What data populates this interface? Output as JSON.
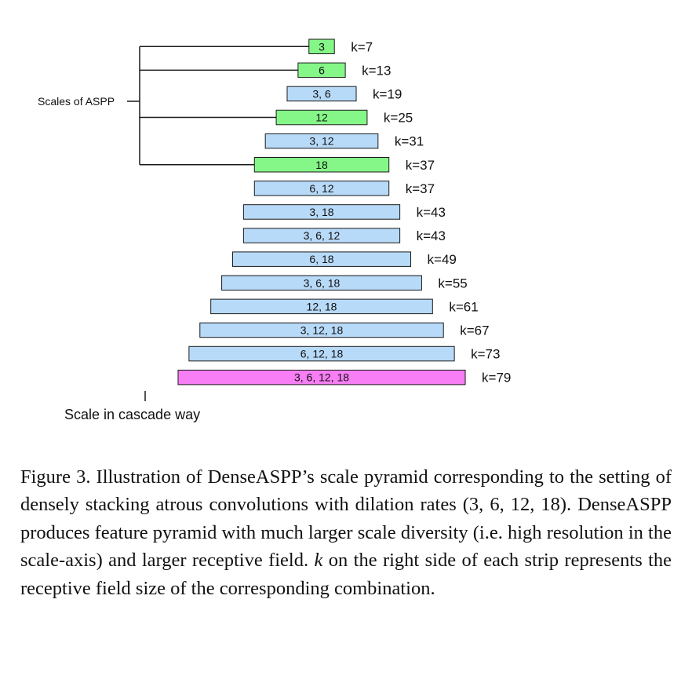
{
  "diagram": {
    "aspp_label": "Scales of ASPP",
    "cascade_label": "Scale in cascade way",
    "colors": {
      "blue": "#b8daf9",
      "green": "#85f788",
      "magenta": "#f77ef4",
      "stroke": "#1a1a1a"
    },
    "strips": [
      {
        "rates": "3",
        "k": "k=7",
        "kind": "green",
        "aspp": true
      },
      {
        "rates": "6",
        "k": "k=13",
        "kind": "green",
        "aspp": true
      },
      {
        "rates": "3, 6",
        "k": "k=19",
        "kind": "blue",
        "aspp": false
      },
      {
        "rates": "12",
        "k": "k=25",
        "kind": "green",
        "aspp": true
      },
      {
        "rates": "3, 12",
        "k": "k=31",
        "kind": "blue",
        "aspp": false
      },
      {
        "rates": "18",
        "k": "k=37",
        "kind": "green",
        "aspp": true
      },
      {
        "rates": "6, 12",
        "k": "k=37",
        "kind": "blue",
        "aspp": false
      },
      {
        "rates": "3, 18",
        "k": "k=43",
        "kind": "blue",
        "aspp": false
      },
      {
        "rates": "3, 6, 12",
        "k": "k=43",
        "kind": "blue",
        "aspp": false
      },
      {
        "rates": "6, 18",
        "k": "k=49",
        "kind": "blue",
        "aspp": false
      },
      {
        "rates": "3, 6, 18",
        "k": "k=55",
        "kind": "blue",
        "aspp": false
      },
      {
        "rates": "12, 18",
        "k": "k=61",
        "kind": "blue",
        "aspp": false
      },
      {
        "rates": "3, 12, 18",
        "k": "k=67",
        "kind": "blue",
        "aspp": false
      },
      {
        "rates": "6, 12, 18",
        "k": "k=73",
        "kind": "blue",
        "aspp": false
      },
      {
        "rates": "3, 6, 12, 18",
        "k": "k=79",
        "kind": "magenta",
        "aspp": false
      }
    ]
  },
  "caption": {
    "prefix": "Figure 3. Illustration of DenseASPP’s scale pyramid corresponding to the setting of densely stacking atrous convolutions with dilation rates (3, 6, 12, 18). DenseASPP produces feature pyramid with much larger scale diversity (i.e. high resolution in the scale-axis) and larger receptive field.",
    "k_symbol": "k",
    "suffix": "on the right side of each strip represents the receptive field size of the corresponding combination."
  }
}
